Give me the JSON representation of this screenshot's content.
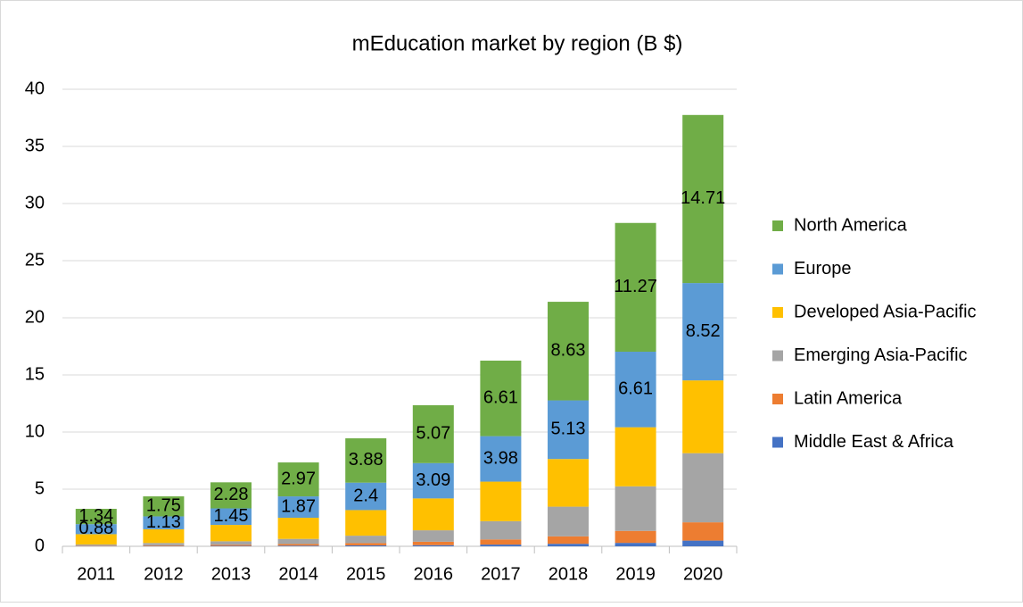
{
  "chart_data": {
    "type": "stacked_bar",
    "title": "mEducation market by region (B $)",
    "categories": [
      "2011",
      "2012",
      "2013",
      "2014",
      "2015",
      "2016",
      "2017",
      "2018",
      "2019",
      "2020"
    ],
    "series": [
      {
        "name": "Middle East & Africa",
        "color": "#4472c4",
        "values": [
          0.02,
          0.03,
          0.04,
          0.06,
          0.08,
          0.1,
          0.15,
          0.22,
          0.3,
          0.5
        ]
      },
      {
        "name": "Latin America",
        "color": "#ed7d31",
        "values": [
          0.04,
          0.06,
          0.1,
          0.14,
          0.2,
          0.3,
          0.45,
          0.65,
          1.05,
          1.6
        ]
      },
      {
        "name": "Emerging Asia-Pacific",
        "color": "#a5a5a5",
        "values": [
          0.1,
          0.2,
          0.3,
          0.45,
          0.65,
          1.0,
          1.6,
          2.6,
          3.9,
          6.05
        ]
      },
      {
        "name": "Developed Asia-Pacific",
        "color": "#ffc000",
        "values": [
          0.9,
          1.2,
          1.43,
          1.85,
          2.24,
          2.79,
          3.46,
          4.17,
          5.17,
          6.37
        ]
      },
      {
        "name": "Europe",
        "color": "#5b9bd5",
        "values": [
          0.88,
          1.13,
          1.45,
          1.87,
          2.4,
          3.09,
          3.98,
          5.13,
          6.61,
          8.52
        ],
        "data_labels": true
      },
      {
        "name": "North America",
        "color": "#70ad47",
        "values": [
          1.34,
          1.75,
          2.28,
          2.97,
          3.88,
          5.07,
          6.61,
          8.63,
          11.27,
          14.71
        ],
        "data_labels": true
      }
    ],
    "ylim": [
      0,
      40
    ],
    "yticks": [
      0,
      5,
      10,
      15,
      20,
      25,
      30,
      35,
      40
    ],
    "grid": true,
    "legend": "right"
  }
}
